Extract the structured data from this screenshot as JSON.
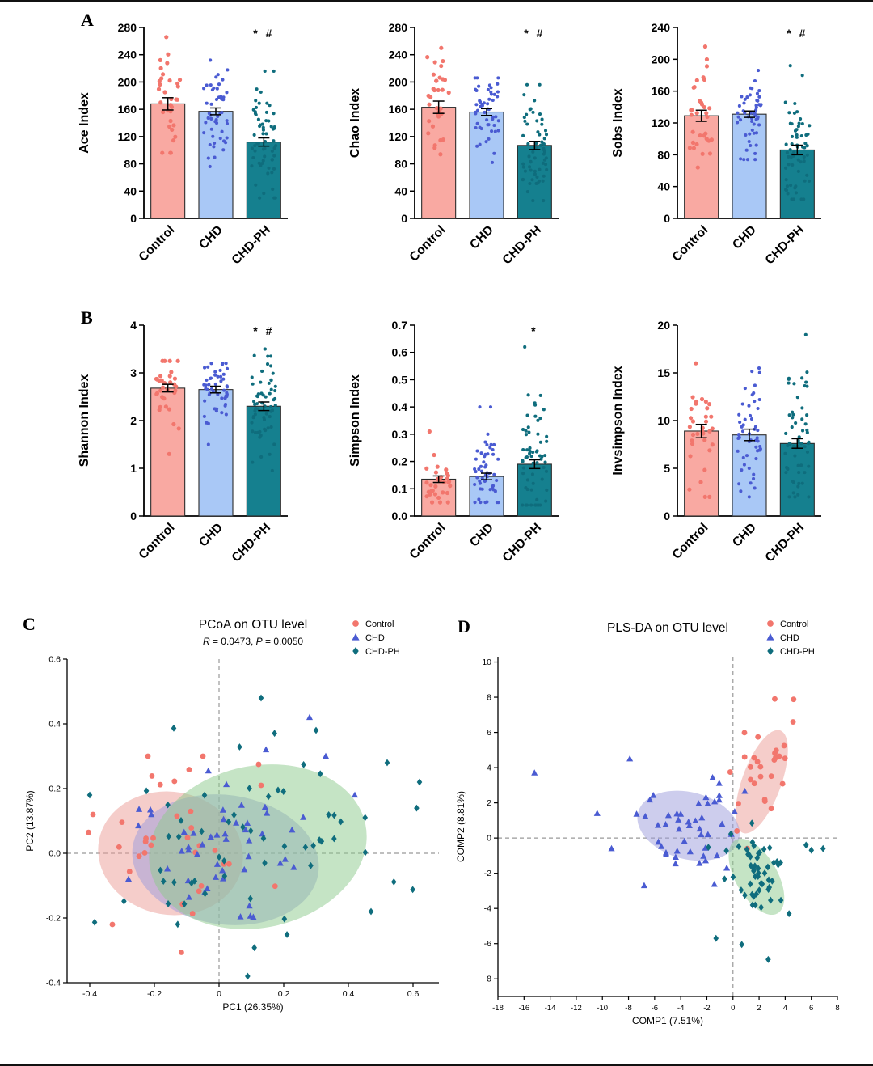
{
  "figure": {
    "panel_labels": {
      "A": "A",
      "B": "B",
      "C": "C",
      "D": "D"
    }
  },
  "groups": [
    {
      "label": "Control",
      "marker": "circle"
    },
    {
      "label": "CHD",
      "marker": "triangle"
    },
    {
      "label": "CHD-PH",
      "marker": "diamond"
    }
  ],
  "colors": {
    "control_bar": "#F9A9A2",
    "control_point": "#F2766D",
    "control_ellipse": "#EC9C96",
    "chd_bar": "#A9C8F6",
    "chd_point": "#4A5BD2",
    "chd_ellipse": "#9C9CDC",
    "chdph_bar": "#15808F",
    "chdph_point": "#0F6D7D",
    "chdph_ellipse": "#8BC98B",
    "axis": "#000000",
    "zero_line": "#999999"
  },
  "chart_data": [
    {
      "id": "ace",
      "panel": "A",
      "type": "bar",
      "ylabel": "Ace Index",
      "categories": [
        "Control",
        "CHD",
        "CHD-PH"
      ],
      "values": [
        168,
        157,
        112
      ],
      "errors": [
        9,
        5,
        6
      ],
      "ylim": [
        0,
        280
      ],
      "ytick_step": 40,
      "ytick_decimals": 0,
      "sig": "* #",
      "points": {
        "n": [
          33,
          52,
          62
        ],
        "range": [
          [
            96,
            266
          ],
          [
            76,
            232
          ],
          [
            30,
            216
          ]
        ]
      }
    },
    {
      "id": "chao",
      "panel": "A",
      "type": "bar",
      "ylabel": "Chao Index",
      "categories": [
        "Control",
        "CHD",
        "CHD-PH"
      ],
      "values": [
        163,
        156,
        107
      ],
      "errors": [
        9,
        5,
        6
      ],
      "ylim": [
        0,
        280
      ],
      "ytick_step": 40,
      "ytick_decimals": 0,
      "sig": "* #",
      "points": {
        "n": [
          33,
          52,
          62
        ],
        "range": [
          [
            94,
            250
          ],
          [
            82,
            206
          ],
          [
            26,
            196
          ]
        ]
      }
    },
    {
      "id": "sobs",
      "panel": "A",
      "type": "bar",
      "ylabel": "Sobs Index",
      "categories": [
        "Control",
        "CHD",
        "CHD-PH"
      ],
      "values": [
        129,
        131,
        86
      ],
      "errors": [
        7,
        4,
        6
      ],
      "ylim": [
        0,
        240
      ],
      "ytick_step": 40,
      "ytick_decimals": 0,
      "sig": "* #",
      "points": {
        "n": [
          33,
          52,
          62
        ],
        "range": [
          [
            64,
            216
          ],
          [
            74,
            186
          ],
          [
            24,
            192
          ]
        ]
      }
    },
    {
      "id": "shannon",
      "panel": "B",
      "type": "bar",
      "ylabel": "Shannon Index",
      "categories": [
        "Control",
        "CHD",
        "CHD-PH"
      ],
      "values": [
        2.68,
        2.65,
        2.3
      ],
      "errors": [
        0.08,
        0.07,
        0.09
      ],
      "ylim": [
        0,
        4
      ],
      "ytick_step": 1,
      "ytick_decimals": 0,
      "sig": "* #",
      "points": {
        "n": [
          33,
          52,
          62
        ],
        "range": [
          [
            1.3,
            3.25
          ],
          [
            1.5,
            3.2
          ],
          [
            0.95,
            3.5
          ]
        ]
      }
    },
    {
      "id": "simpson",
      "panel": "B",
      "type": "bar",
      "ylabel": "Simpson Index",
      "categories": [
        "Control",
        "CHD",
        "CHD-PH"
      ],
      "values": [
        0.135,
        0.145,
        0.19
      ],
      "errors": [
        0.012,
        0.012,
        0.016
      ],
      "ylim": [
        0,
        0.7
      ],
      "ytick_step": 0.1,
      "ytick_decimals": 1,
      "sig": "*",
      "points": {
        "n": [
          33,
          52,
          62
        ],
        "range": [
          [
            0.05,
            0.31
          ],
          [
            0.05,
            0.4
          ],
          [
            0.04,
            0.62
          ]
        ]
      }
    },
    {
      "id": "invsimpson",
      "panel": "B",
      "type": "bar",
      "ylabel": "Invsimpson Index",
      "categories": [
        "Control",
        "CHD",
        "CHD-PH"
      ],
      "values": [
        8.9,
        8.5,
        7.6
      ],
      "errors": [
        0.7,
        0.6,
        0.5
      ],
      "ylim": [
        0,
        20
      ],
      "ytick_step": 5,
      "ytick_decimals": 0,
      "sig": "",
      "points": {
        "n": [
          33,
          52,
          62
        ],
        "range": [
          [
            2,
            16
          ],
          [
            2,
            15.5
          ],
          [
            2,
            19
          ]
        ]
      }
    },
    {
      "id": "pcoa",
      "panel": "C",
      "type": "scatter",
      "title": "PCoA on OTU level",
      "subtitle_parts": [
        {
          "text": "R",
          "italic": true
        },
        {
          "text": " = 0.0473, ",
          "italic": false
        },
        {
          "text": "P",
          "italic": true
        },
        {
          "text": " = 0.0050",
          "italic": false
        }
      ],
      "xlabel": "PC1 (26.35%)",
      "ylabel": "PC2 (13.87%)",
      "xlim": [
        -0.47,
        0.68
      ],
      "ylim": [
        -0.4,
        0.6
      ],
      "xtick_values": [
        -0.4,
        -0.2,
        0,
        0.2,
        0.4,
        0.6
      ],
      "xtick_labels": [
        "-0.4",
        "-0.2",
        "0",
        "0.2",
        "0.4",
        "0.6"
      ],
      "ytick_values": [
        -0.4,
        -0.2,
        0,
        0.2,
        0.4,
        0.6
      ],
      "ytick_labels": [
        "-0.4",
        "-0.2",
        "0.0",
        "0.2",
        "0.4",
        "0.6"
      ],
      "groups": [
        {
          "name": "Control",
          "center": [
            -0.13,
            0.0
          ],
          "sd": [
            0.11,
            0.11
          ],
          "n": 30,
          "extras": [
            [
              -0.39,
              0.12
            ],
            [
              -0.22,
              0.3
            ],
            [
              -0.05,
              0.3
            ],
            [
              0.13,
              0.21
            ],
            [
              -0.33,
              -0.22
            ]
          ],
          "ellipse": {
            "cx": -0.15,
            "cy": 0.0,
            "rx": 0.225,
            "ry": 0.19,
            "angle": 10
          }
        },
        {
          "name": "CHD",
          "center": [
            0.0,
            0.02
          ],
          "sd": [
            0.14,
            0.12
          ],
          "n": 48,
          "extras": [
            [
              0.28,
              0.42
            ],
            [
              0.42,
              0.18
            ],
            [
              0.33,
              0.3
            ],
            [
              -0.28,
              -0.08
            ]
          ],
          "ellipse": {
            "cx": 0.02,
            "cy": -0.02,
            "rx": 0.29,
            "ry": 0.2,
            "angle": 8
          }
        },
        {
          "name": "CHD-PH",
          "center": [
            0.08,
            0.0
          ],
          "sd": [
            0.22,
            0.16
          ],
          "n": 56,
          "extras": [
            [
              0.62,
              0.22
            ],
            [
              0.52,
              0.28
            ],
            [
              0.13,
              0.48
            ],
            [
              0.3,
              0.38
            ],
            [
              -0.4,
              0.18
            ],
            [
              0.47,
              -0.18
            ]
          ],
          "ellipse": {
            "cx": 0.12,
            "cy": 0.02,
            "rx": 0.34,
            "ry": 0.25,
            "angle": -12
          }
        }
      ]
    },
    {
      "id": "plsda",
      "panel": "D",
      "type": "scatter",
      "title": "PLS-DA on OTU level",
      "xlabel": "COMP1 (7.51%)",
      "ylabel": "COMP2 (8.81%)",
      "xlim": [
        -18,
        8
      ],
      "ylim": [
        -9,
        10.3
      ],
      "xtick_values": [
        -18,
        -16,
        -14,
        -12,
        -10,
        -8,
        -6,
        -4,
        -2,
        0,
        2,
        4,
        6,
        8
      ],
      "xtick_labels": [
        "-18",
        "-16",
        "-14",
        "-12",
        "-10",
        "-8",
        "-6",
        "-4",
        "-2",
        "0",
        "2",
        "4",
        "6",
        "8"
      ],
      "ytick_values": [
        -8,
        -6,
        -4,
        -2,
        0,
        2,
        4,
        6,
        8,
        10
      ],
      "ytick_labels": [
        "-8",
        "-6",
        "-4",
        "-2",
        "0",
        "2",
        "4",
        "6",
        "8",
        "10"
      ],
      "groups": [
        {
          "name": "Control",
          "center": [
            2.4,
            4.3
          ],
          "sd": [
            1.0,
            1.4
          ],
          "n": 26,
          "extras": [
            [
              3.2,
              7.9
            ],
            [
              4.6,
              6.6
            ],
            [
              0.3,
              0.4
            ],
            [
              1.1,
              -0.6
            ]
          ],
          "ellipse": {
            "cx": 2.2,
            "cy": 3.2,
            "rx": 1.5,
            "ry": 3.1,
            "angle": 20
          }
        },
        {
          "name": "CHD",
          "center": [
            -3.2,
            0.6
          ],
          "sd": [
            2.0,
            1.5
          ],
          "n": 46,
          "extras": [
            [
              -15.2,
              3.7
            ],
            [
              -10.4,
              1.4
            ],
            [
              -7.9,
              4.5
            ],
            [
              -9.3,
              -0.6
            ],
            [
              -6.8,
              -2.7
            ]
          ],
          "ellipse": {
            "cx": -3.4,
            "cy": 0.7,
            "rx": 4.0,
            "ry": 1.9,
            "angle": 15
          }
        },
        {
          "name": "CHD-PH",
          "center": [
            1.7,
            -2.0
          ],
          "sd": [
            1.2,
            1.2
          ],
          "n": 54,
          "extras": [
            [
              5.6,
              -0.4
            ],
            [
              6.9,
              -0.6
            ],
            [
              -1.3,
              -5.7
            ],
            [
              2.7,
              -6.9
            ]
          ],
          "ellipse": {
            "cx": 1.8,
            "cy": -2.2,
            "rx": 1.6,
            "ry": 2.4,
            "angle": -30
          }
        }
      ]
    }
  ]
}
